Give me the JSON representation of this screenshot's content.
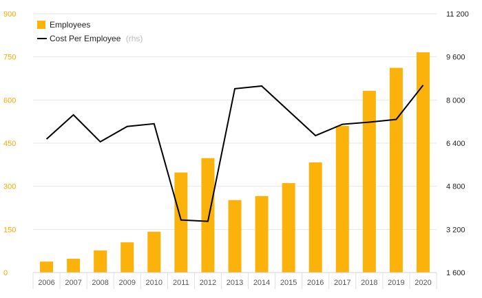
{
  "chart_data": {
    "type": "bar",
    "categories": [
      "2006",
      "2007",
      "2008",
      "2009",
      "2010",
      "2011",
      "2012",
      "2013",
      "2014",
      "2015",
      "2016",
      "2017",
      "2018",
      "2019",
      "2020"
    ],
    "series": [
      {
        "name": "Employees",
        "type": "bar",
        "axis": "left",
        "color": "#fbb20a",
        "values": [
          38,
          48,
          77,
          105,
          142,
          348,
          398,
          252,
          266,
          311,
          383,
          510,
          632,
          712,
          766
        ]
      },
      {
        "name": "Cost Per Employee",
        "legend_suffix": "(rhs)",
        "type": "line",
        "axis": "right",
        "color": "#000000",
        "values": [
          6550,
          7450,
          6450,
          7020,
          7120,
          3550,
          3500,
          8420,
          8520,
          null,
          6680,
          7100,
          7180,
          7280,
          8550
        ]
      }
    ],
    "ylim_left": [
      0,
      900
    ],
    "yticks_left": [
      0,
      150,
      300,
      450,
      600,
      750,
      900
    ],
    "ytick_labels_left": [
      "0",
      "150",
      "300",
      "450",
      "600",
      "750",
      "900"
    ],
    "ylim_right": [
      1600,
      11200
    ],
    "yticks_right": [
      1600,
      3200,
      4800,
      6400,
      8000,
      9600,
      11200
    ],
    "ytick_labels_right": [
      "1 600",
      "3 200",
      "4 800",
      "6 400",
      "8 000",
      "9 600",
      "11 200"
    ],
    "grid": true,
    "legend_position": "top-left"
  }
}
